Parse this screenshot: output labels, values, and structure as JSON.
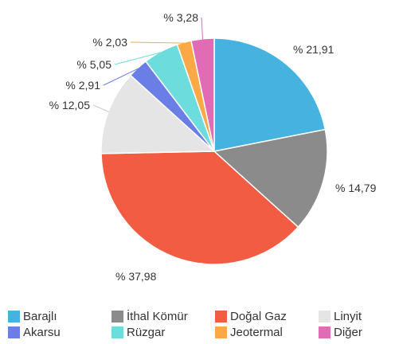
{
  "chart_data": {
    "type": "pie",
    "start_angle_deg": 0,
    "direction": "clockwise",
    "legend_position": "bottom",
    "series": [
      {
        "name": "Barajlı",
        "value": 21.91,
        "label": "% 21,91",
        "color": "#45b2df"
      },
      {
        "name": "İthal Kömür",
        "value": 14.79,
        "label": "% 14,79",
        "color": "#8b8b8b"
      },
      {
        "name": "Doğal Gaz",
        "value": 37.98,
        "label": "% 37,98",
        "color": "#f25c42"
      },
      {
        "name": "Linyit",
        "value": 12.05,
        "label": "% 12,05",
        "color": "#e5e5e5"
      },
      {
        "name": "Akarsu",
        "value": 2.91,
        "label": "% 2,91",
        "color": "#6a7ee6"
      },
      {
        "name": "Rüzgar",
        "value": 5.05,
        "label": "% 5,05",
        "color": "#6ddcdd"
      },
      {
        "name": "Jeotermal",
        "value": 2.03,
        "label": "% 2,03",
        "color": "#fba946"
      },
      {
        "name": "Diğer",
        "value": 3.28,
        "label": "% 3,28",
        "color": "#e26bb6"
      }
    ]
  }
}
